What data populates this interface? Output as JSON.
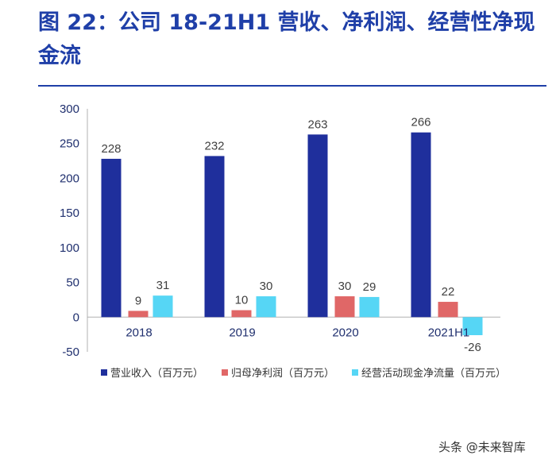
{
  "title": "图 22：公司 18-21H1 营收、净利润、经营性净现金流",
  "watermark": "头条 @未来智库",
  "colors": {
    "title": "#1f3fa8",
    "series": [
      "#1f2f9c",
      "#e06767",
      "#56d6f5"
    ],
    "axis_text": "#1f2f6e"
  },
  "chart_data": {
    "type": "bar",
    "categories": [
      "2018",
      "2019",
      "2020",
      "2021H1"
    ],
    "series": [
      {
        "name": "营业收入（百万元）",
        "values": [
          228,
          232,
          263,
          266
        ]
      },
      {
        "name": "归母净利润（百万元）",
        "values": [
          9,
          10,
          30,
          22
        ]
      },
      {
        "name": "经营活动现金净流量（百万元）",
        "values": [
          31,
          30,
          29,
          -26
        ]
      }
    ],
    "ylim": [
      -50,
      300
    ],
    "yticks": [
      "300",
      "250",
      "200",
      "150",
      "100",
      "50",
      "0",
      "-50"
    ],
    "data_labels": [
      [
        "228",
        "232",
        "263",
        "266"
      ],
      [
        "9",
        "10",
        "30",
        "22"
      ],
      [
        "31",
        "30",
        "29",
        "-26"
      ]
    ],
    "legend": "bottom",
    "xlabel": "",
    "ylabel": ""
  }
}
